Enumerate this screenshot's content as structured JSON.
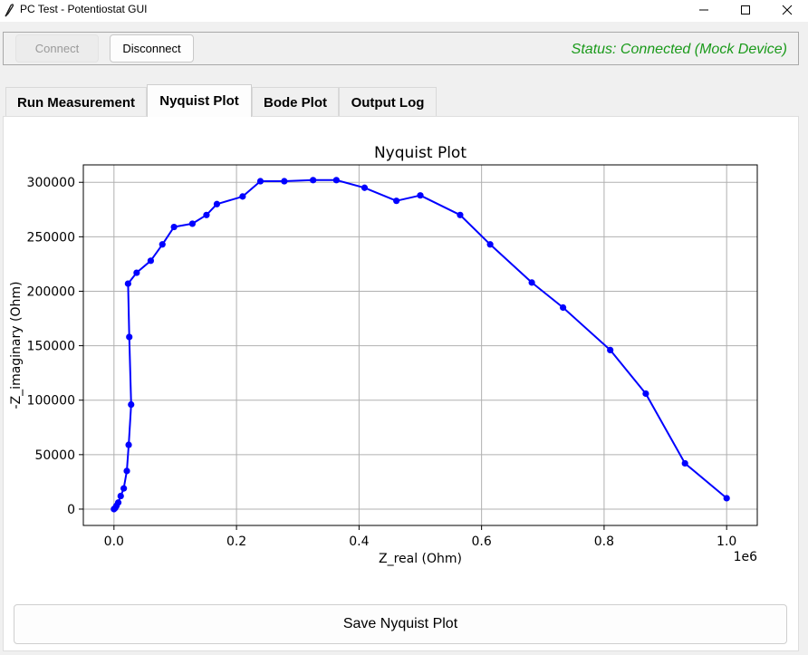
{
  "window": {
    "title": "PC Test - Potentiostat GUI"
  },
  "connection": {
    "connect_label": "Connect",
    "disconnect_label": "Disconnect",
    "status_text": "Status: Connected (Mock Device)",
    "status_color": "#1a9a1a"
  },
  "tabs": [
    {
      "label": "Run Measurement",
      "active": false
    },
    {
      "label": "Nyquist Plot",
      "active": true
    },
    {
      "label": "Bode Plot",
      "active": false
    },
    {
      "label": "Output Log",
      "active": false
    }
  ],
  "save_button_label": "Save Nyquist Plot",
  "chart_data": {
    "type": "line",
    "title": "Nyquist Plot",
    "xlabel": "Z_real (Ohm)",
    "ylabel": "-Z_imaginary (Ohm)",
    "x_offset_text": "1e6",
    "xlim": [
      -0.05,
      1.05
    ],
    "ylim": [
      -15000,
      316000
    ],
    "xticks": [
      0.0,
      0.2,
      0.4,
      0.6,
      0.8,
      1.0
    ],
    "xtick_labels": [
      "0.0",
      "0.2",
      "0.4",
      "0.6",
      "0.8",
      "1.0"
    ],
    "yticks": [
      0,
      50000,
      100000,
      150000,
      200000,
      250000,
      300000
    ],
    "ytick_labels": [
      "0",
      "50000",
      "100000",
      "150000",
      "200000",
      "250000",
      "300000"
    ],
    "grid": true,
    "series_color": "#0000ff",
    "marker": "circle",
    "x": [
      0.0,
      0.002,
      0.004,
      0.007,
      0.011,
      0.016,
      0.021,
      0.024,
      0.028,
      0.025,
      0.023,
      0.037,
      0.06,
      0.079,
      0.098,
      0.128,
      0.151,
      0.168,
      0.21,
      0.239,
      0.278,
      0.325,
      0.363,
      0.409,
      0.461,
      0.5,
      0.565,
      0.614,
      0.682,
      0.733,
      0.81,
      0.868,
      0.932,
      1.0
    ],
    "y": [
      0,
      1000,
      3000,
      6000,
      12000,
      19000,
      35000,
      59000,
      96000,
      158000,
      207000,
      217000,
      228000,
      243000,
      259000,
      262000,
      270000,
      280000,
      287000,
      301000,
      301000,
      302000,
      302000,
      295000,
      283000,
      288000,
      270000,
      243000,
      208000,
      185000,
      146000,
      106000,
      42000,
      10000
    ]
  }
}
